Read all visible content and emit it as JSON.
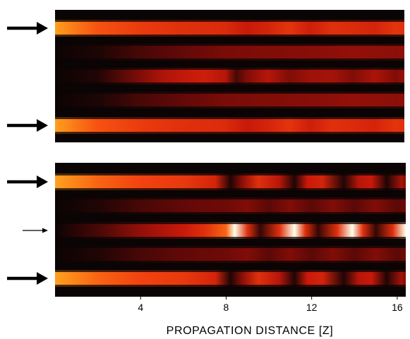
{
  "chart_data": {
    "type": "heatmap",
    "xlabel": "PROPAGATION DISTANCE [Z]",
    "x_ticks": [
      4,
      8,
      12,
      16
    ],
    "xlim": [
      0,
      16.4
    ],
    "colormap": "black-red-yellow-white",
    "panels": [
      {
        "name": "",
        "waveguides": 5,
        "input_arrows": [
          {
            "row": 0,
            "weight": "thick"
          },
          {
            "row": 4,
            "weight": "thick"
          }
        ],
        "row_intensity_profiles": [
          {
            "row": 0,
            "x": [
              0,
              1,
              2,
              4,
              6,
              8,
              9,
              10,
              11,
              12,
              13,
              14,
              15,
              16,
              16.4
            ],
            "intensity": [
              0.85,
              0.78,
              0.72,
              0.65,
              0.6,
              0.58,
              0.5,
              0.55,
              0.62,
              0.52,
              0.6,
              0.58,
              0.55,
              0.62,
              0.6
            ]
          },
          {
            "row": 1,
            "x": [
              0,
              2,
              4,
              6,
              8,
              10,
              12,
              14,
              16,
              16.4
            ],
            "intensity": [
              0.0,
              0.04,
              0.15,
              0.22,
              0.28,
              0.3,
              0.32,
              0.35,
              0.33,
              0.34
            ]
          },
          {
            "row": 2,
            "x": [
              0,
              2,
              4,
              5,
              6,
              7,
              8,
              8.5,
              9,
              10,
              11,
              12,
              13,
              14,
              15,
              16,
              16.4
            ],
            "intensity": [
              0.0,
              0.05,
              0.3,
              0.42,
              0.48,
              0.52,
              0.45,
              0.15,
              0.3,
              0.45,
              0.3,
              0.38,
              0.4,
              0.3,
              0.42,
              0.3,
              0.36
            ]
          },
          {
            "row": 3,
            "x": [
              0,
              2,
              4,
              6,
              8,
              10,
              12,
              14,
              16,
              16.4
            ],
            "intensity": [
              0.0,
              0.04,
              0.15,
              0.22,
              0.28,
              0.3,
              0.32,
              0.35,
              0.33,
              0.34
            ]
          },
          {
            "row": 4,
            "x": [
              0,
              1,
              2,
              4,
              6,
              8,
              9,
              10,
              11,
              12,
              13,
              14,
              15,
              16,
              16.4
            ],
            "intensity": [
              0.85,
              0.78,
              0.72,
              0.65,
              0.6,
              0.58,
              0.5,
              0.55,
              0.62,
              0.52,
              0.6,
              0.58,
              0.55,
              0.62,
              0.6
            ]
          }
        ]
      },
      {
        "name": "",
        "waveguides": 5,
        "input_arrows": [
          {
            "row": 0,
            "weight": "thick"
          },
          {
            "row": 2,
            "weight": "thin"
          },
          {
            "row": 4,
            "weight": "thick"
          }
        ],
        "row_intensity_profiles": [
          {
            "row": 0,
            "x": [
              0,
              2,
              4,
              6,
              7.5,
              8.2,
              8.8,
              9.5,
              10.5,
              11.2,
              11.8,
              12.5,
              13.5,
              14.2,
              14.8,
              15.5,
              16.2,
              16.4
            ],
            "intensity": [
              0.85,
              0.75,
              0.68,
              0.64,
              0.55,
              0.05,
              0.35,
              0.6,
              0.45,
              0.05,
              0.5,
              0.55,
              0.05,
              0.45,
              0.5,
              0.05,
              0.4,
              0.3
            ]
          },
          {
            "row": 1,
            "x": [
              0,
              2,
              4,
              6,
              8,
              9,
              10,
              11,
              12,
              13,
              14,
              15,
              16,
              16.4
            ],
            "intensity": [
              0.0,
              0.05,
              0.15,
              0.22,
              0.25,
              0.3,
              0.2,
              0.3,
              0.2,
              0.3,
              0.2,
              0.3,
              0.2,
              0.25
            ]
          },
          {
            "row": 2,
            "x": [
              0,
              2,
              4,
              6,
              7,
              8,
              8.4,
              9,
              9.6,
              10.5,
              11.2,
              11.7,
              12.3,
              13.2,
              13.9,
              14.4,
              15.0,
              15.8,
              16.4
            ],
            "intensity": [
              0.0,
              0.15,
              0.35,
              0.5,
              0.6,
              0.75,
              1.0,
              0.6,
              0.1,
              0.6,
              1.0,
              0.6,
              0.1,
              0.6,
              1.0,
              0.6,
              0.1,
              0.6,
              1.0
            ]
          },
          {
            "row": 3,
            "x": [
              0,
              2,
              4,
              6,
              8,
              9,
              10,
              11,
              12,
              13,
              14,
              15,
              16,
              16.4
            ],
            "intensity": [
              0.0,
              0.05,
              0.15,
              0.22,
              0.25,
              0.3,
              0.2,
              0.3,
              0.2,
              0.3,
              0.2,
              0.3,
              0.2,
              0.25
            ]
          },
          {
            "row": 4,
            "x": [
              0,
              2,
              4,
              6,
              7.5,
              8.2,
              8.8,
              9.5,
              10.5,
              11.2,
              11.8,
              12.5,
              13.5,
              14.2,
              14.8,
              15.5,
              16.2,
              16.4
            ],
            "intensity": [
              0.85,
              0.75,
              0.68,
              0.64,
              0.55,
              0.05,
              0.35,
              0.6,
              0.45,
              0.05,
              0.5,
              0.55,
              0.05,
              0.45,
              0.5,
              0.05,
              0.4,
              0.3
            ]
          }
        ]
      }
    ]
  }
}
